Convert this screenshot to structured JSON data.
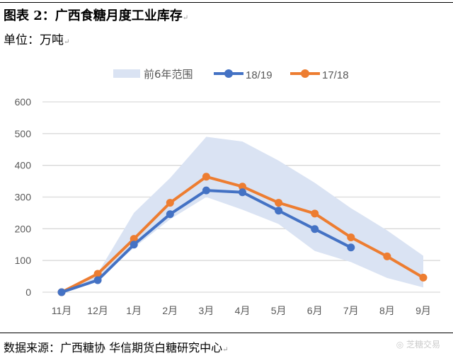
{
  "title": "图表 2：广西食糖月度工业库存",
  "unit": "单位：万吨",
  "source": "数据来源：广西糖协  华信期货白糖研究中心",
  "watermark": "芝糖交易",
  "chart_data": {
    "type": "line",
    "categories": [
      "11月",
      "12月",
      "1月",
      "2月",
      "3月",
      "4月",
      "5月",
      "6月",
      "7月",
      "8月",
      "9月"
    ],
    "ylim": [
      0,
      600
    ],
    "yticks": [
      0,
      100,
      200,
      300,
      400,
      500,
      600
    ],
    "grid": true,
    "legend_placement": "top",
    "band": {
      "name": "前6年范围",
      "color": "#dae3f3",
      "upper": [
        0,
        60,
        250,
        360,
        490,
        475,
        415,
        345,
        265,
        195,
        115
      ],
      "lower": [
        0,
        40,
        140,
        230,
        300,
        260,
        215,
        130,
        95,
        45,
        15
      ]
    },
    "series": [
      {
        "name": "18/19",
        "color": "#4472c4",
        "values": [
          0,
          38,
          150,
          246,
          321,
          315,
          257,
          199,
          141,
          null,
          null
        ]
      },
      {
        "name": "17/18",
        "color": "#ed7d31",
        "values": [
          0,
          58,
          168,
          282,
          364,
          333,
          282,
          248,
          173,
          113,
          46
        ]
      }
    ]
  }
}
